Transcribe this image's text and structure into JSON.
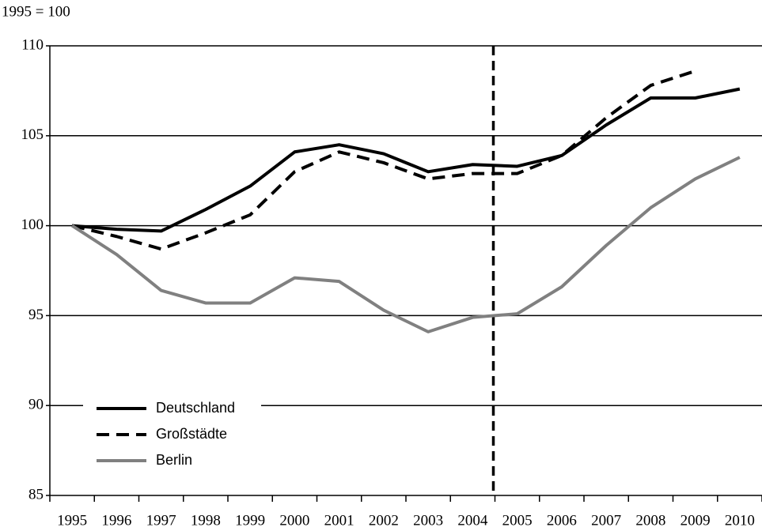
{
  "chart_data": {
    "type": "line",
    "title": "1995 = 100",
    "categories": [
      "1995",
      "1996",
      "1997",
      "1998",
      "1999",
      "2000",
      "2001",
      "2002",
      "2003",
      "2004",
      "2005",
      "2006",
      "2007",
      "2008",
      "2009",
      "2010"
    ],
    "series": [
      {
        "name": "Deutschland",
        "color": "#000000",
        "dash": "solid",
        "values": [
          100,
          99.8,
          99.7,
          100.9,
          102.2,
          104.1,
          104.5,
          104.0,
          103.0,
          103.4,
          103.3,
          103.9,
          105.6,
          107.1,
          107.1,
          107.6
        ]
      },
      {
        "name": "Großstädte",
        "color": "#000000",
        "dash": "dashed",
        "values": [
          100,
          99.4,
          98.7,
          99.6,
          100.6,
          103.0,
          104.1,
          103.5,
          102.6,
          102.9,
          102.9,
          103.9,
          106.0,
          107.8,
          108.6,
          null
        ]
      },
      {
        "name": "Berlin",
        "color": "#808080",
        "dash": "solid",
        "values": [
          100,
          98.4,
          96.4,
          95.7,
          95.7,
          97.1,
          96.9,
          95.3,
          94.1,
          94.9,
          95.1,
          96.6,
          98.9,
          101.0,
          102.6,
          103.8
        ]
      }
    ],
    "ylim": [
      85,
      110
    ],
    "yticks": [
      85,
      90,
      95,
      100,
      105,
      110
    ],
    "grid": true,
    "legend": "lower left"
  }
}
